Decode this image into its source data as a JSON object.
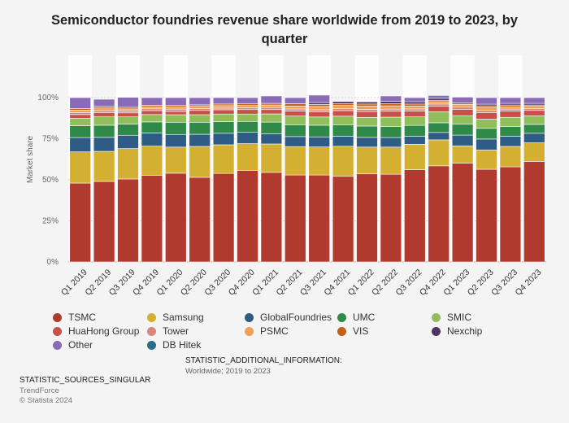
{
  "title": "Semiconductor foundries revenue share worldwide from 2019 to 2023, by quarter",
  "additional_info_heading": "STATISTIC_ADDITIONAL_INFORMATION:",
  "additional_info_value": "Worldwide; 2019 to 2023",
  "sources_heading": "STATISTIC_SOURCES_SINGULAR",
  "source": "TrendForce",
  "copyright": "© Statista 2024",
  "chart_data": {
    "type": "bar",
    "stacked": true,
    "ylabel": "Market share",
    "ylim": [
      0,
      100
    ],
    "yticks": [
      "0%",
      "25%",
      "50%",
      "75%",
      "100%"
    ],
    "grid": true,
    "legend_position": "bottom",
    "categories": [
      "Q1 2019",
      "Q2 2019",
      "Q3 2019",
      "Q4 2019",
      "Q1 2020",
      "Q2 2020",
      "Q3 2020",
      "Q4 2020",
      "Q1 2021",
      "Q2 2021",
      "Q3 2021",
      "Q4 2021",
      "Q1 2022",
      "Q2 2022",
      "Q3 2022",
      "Q4 2022",
      "Q1 2023",
      "Q2 2023",
      "Q3 2023",
      "Q4 2023"
    ],
    "series": [
      {
        "name": "TSMC",
        "color": "#b03a2e",
        "values": [
          48,
          49,
          50.5,
          52.7,
          54,
          51.5,
          53.9,
          55.6,
          54.5,
          52.9,
          52.9,
          52.1,
          53.6,
          53.4,
          56.1,
          58.5,
          60.1,
          56.4,
          57.9,
          61.2
        ]
      },
      {
        "name": "Samsung",
        "color": "#d4b032",
        "values": [
          19,
          18.3,
          18.5,
          17.8,
          15.9,
          18.8,
          17.4,
          16.4,
          17.3,
          17.3,
          17.1,
          18.3,
          16.3,
          16.5,
          15.5,
          15.8,
          10.5,
          11.7,
          12.4,
          11.3
        ]
      },
      {
        "name": "GlobalFoundries",
        "color": "#2e5c84",
        "values": [
          8.7,
          8.5,
          8.1,
          8.0,
          7.7,
          7.4,
          7.0,
          6.9,
          6.1,
          6.1,
          6.1,
          6.1,
          5.9,
          5.8,
          4.9,
          4.5,
          6.6,
          6.7,
          6.2,
          5.8
        ]
      },
      {
        "name": "UMC",
        "color": "#2f8a4a",
        "values": [
          7.2,
          7.4,
          6.8,
          6.7,
          7.4,
          7.3,
          7.1,
          6.6,
          7.2,
          7.2,
          7.1,
          7.0,
          6.9,
          6.8,
          6.6,
          5.9,
          6.6,
          6.5,
          6.0,
          5.4
        ]
      },
      {
        "name": "SMIC",
        "color": "#8fbe5a",
        "values": [
          4.5,
          5.1,
          4.4,
          4.5,
          4.6,
          4.6,
          4.6,
          4.5,
          5.0,
          5.3,
          5.0,
          5.2,
          5.2,
          5.6,
          5.2,
          6.7,
          5.2,
          5.6,
          5.5,
          5.2
        ]
      },
      {
        "name": "HuaHong Group",
        "color": "#c9504a",
        "values": [
          2.3,
          2.6,
          2.4,
          2.4,
          2.0,
          2.6,
          2.6,
          2.7,
          2.6,
          3.0,
          3.2,
          3.4,
          3.6,
          3.6,
          3.5,
          3.3,
          3.9,
          4.0,
          3.8,
          3.3
        ]
      },
      {
        "name": "Tower",
        "color": "#d9877c",
        "values": [
          1.2,
          1.2,
          1.2,
          1.1,
          1.4,
          1.1,
          1.0,
          1.1,
          1.3,
          1.3,
          1.2,
          1.3,
          1.3,
          1.3,
          1.3,
          1.4,
          1.3,
          1.3,
          1.2,
          1.2
        ]
      },
      {
        "name": "PSMC",
        "color": "#f0a050",
        "values": [
          1.5,
          1.6,
          1.2,
          1.2,
          1.3,
          1.4,
          1.5,
          1.4,
          1.5,
          1.8,
          2.0,
          1.8,
          2.1,
          2.0,
          1.8,
          1.4,
          1.6,
          1.8,
          1.4,
          1.3
        ]
      },
      {
        "name": "VIS",
        "color": "#c2611a",
        "values": [
          1.0,
          1.0,
          1.0,
          0.9,
          0.9,
          0.9,
          1.0,
          1.0,
          1.0,
          1.4,
          1.2,
          1.2,
          1.2,
          1.3,
          1.2,
          0.9,
          0.9,
          1.0,
          1.1,
          0.8
        ]
      },
      {
        "name": "Nexchip",
        "color": "#4b3566",
        "values": [
          0.0,
          0.0,
          0.0,
          0.0,
          0.0,
          0.0,
          0.0,
          0.0,
          0.0,
          0.0,
          1.2,
          1.2,
          1.3,
          1.4,
          1.4,
          1.2,
          0.0,
          1.0,
          1.0,
          1.0
        ]
      },
      {
        "name": "Other",
        "color": "#8a6bb8",
        "values": [
          6.6,
          4.3,
          6.1,
          4.7,
          4.8,
          4.4,
          3.9,
          3.8,
          4.5,
          3.7,
          4.5,
          0.0,
          0.0,
          3.3,
          2.5,
          1.7,
          3.6,
          4.0,
          3.5,
          3.5
        ]
      },
      {
        "name": "DB Hitek",
        "color": "#2b6f86",
        "values": [
          0.0,
          0.0,
          0.0,
          0.0,
          0.0,
          0.0,
          0.0,
          0.0,
          0.0,
          0.0,
          0.0,
          0.0,
          0.0,
          0.0,
          0.0,
          0.0,
          0.0,
          0.0,
          0.0,
          0.0
        ]
      }
    ]
  }
}
